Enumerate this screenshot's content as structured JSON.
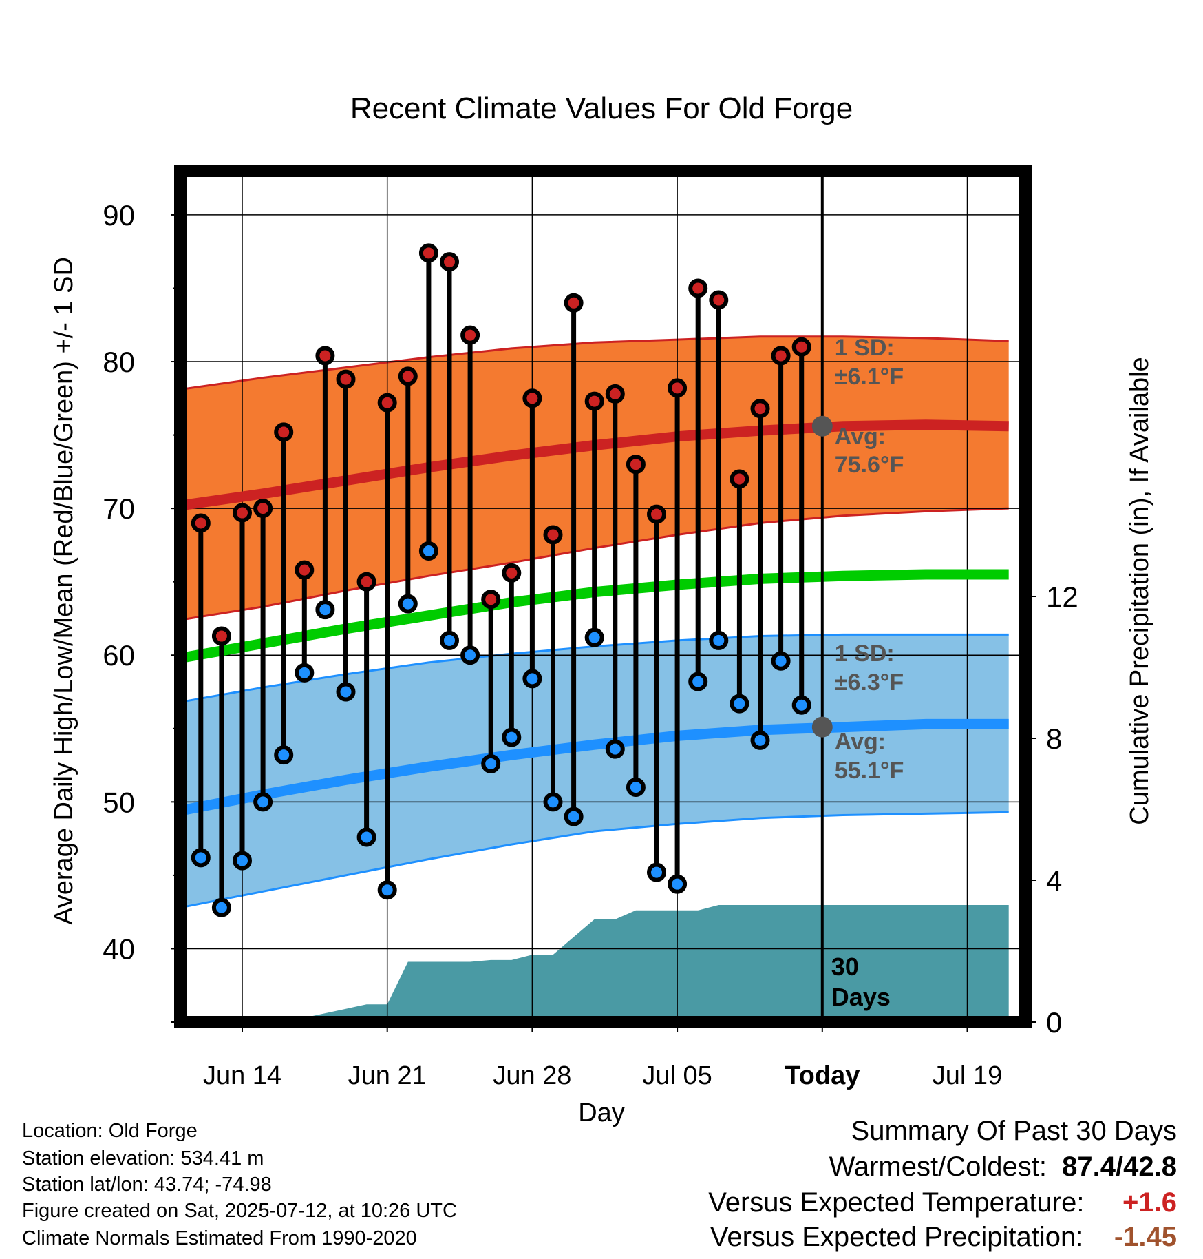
{
  "chart_data": {
    "type": "line",
    "title": "Recent Climate Values For Old Forge",
    "xlabel": "Day",
    "ylabel": "Average Daily High/Low/Mean (Red/Blue/Green) +/- 1 SD",
    "ylabel_right": "Cumulative Precipitation (in), If Available",
    "x_ticks": [
      "Jun 14",
      "Jun 21",
      "Jun 28",
      "Jul 05",
      "Today",
      "Jul 19"
    ],
    "y_ticks": [
      "40",
      "50",
      "60",
      "70",
      "80",
      "90"
    ],
    "y2_ticks": [
      "0",
      "4",
      "8",
      "12"
    ],
    "ylim": [
      35,
      93
    ],
    "y2lim": [
      0,
      24
    ],
    "dates": [
      "Jun 12",
      "Jun 13",
      "Jun 14",
      "Jun 15",
      "Jun 16",
      "Jun 17",
      "Jun 18",
      "Jun 19",
      "Jun 20",
      "Jun 21",
      "Jun 22",
      "Jun 23",
      "Jun 24",
      "Jun 25",
      "Jun 26",
      "Jun 27",
      "Jun 28",
      "Jun 29",
      "Jun 30",
      "Jul 01",
      "Jul 02",
      "Jul 03",
      "Jul 04",
      "Jul 05",
      "Jul 06",
      "Jul 07",
      "Jul 08",
      "Jul 09",
      "Jul 10",
      "Jul 11"
    ],
    "daily_high": [
      69.0,
      61.3,
      69.7,
      70.0,
      75.2,
      65.8,
      80.4,
      78.8,
      65.0,
      77.2,
      79.0,
      87.4,
      86.8,
      81.8,
      63.8,
      65.6,
      77.5,
      68.2,
      84.0,
      77.3,
      77.8,
      73.0,
      69.6,
      78.2,
      85.0,
      84.2,
      72.0,
      76.8,
      80.4,
      81.0
    ],
    "daily_low": [
      46.2,
      42.8,
      46.0,
      50.0,
      53.2,
      58.8,
      63.1,
      57.5,
      47.6,
      44.0,
      63.5,
      67.1,
      61.0,
      60.0,
      52.6,
      54.4,
      58.4,
      50.0,
      49.0,
      61.2,
      53.6,
      51.0,
      45.2,
      44.4,
      58.2,
      61.0,
      56.7,
      54.2,
      59.6,
      56.6
    ],
    "normals": {
      "start": "Jun 11",
      "end": "Jul 21",
      "avg_high": [
        70.2,
        71.0,
        71.9,
        72.8,
        73.6,
        74.3,
        74.9,
        75.3,
        75.6,
        75.7,
        75.6
      ],
      "avg_low": [
        49.4,
        50.5,
        51.5,
        52.4,
        53.2,
        53.9,
        54.5,
        54.9,
        55.1,
        55.3,
        55.3
      ],
      "avg_mean": [
        59.8,
        60.8,
        61.8,
        62.7,
        63.6,
        64.3,
        64.8,
        65.2,
        65.4,
        65.5,
        65.5
      ],
      "high_sd_upper": [
        78.1,
        78.9,
        79.6,
        80.3,
        80.9,
        81.3,
        81.5,
        81.7,
        81.7,
        81.6,
        81.4
      ],
      "high_sd_lower": [
        62.4,
        63.3,
        64.4,
        65.4,
        66.3,
        67.3,
        68.2,
        69.0,
        69.5,
        69.8,
        70.0
      ],
      "low_sd_upper": [
        56.8,
        57.8,
        58.7,
        59.5,
        60.1,
        60.6,
        61.0,
        61.3,
        61.4,
        61.4,
        61.4
      ],
      "low_sd_lower": [
        42.8,
        43.9,
        45.0,
        46.1,
        47.1,
        48.0,
        48.5,
        48.9,
        49.1,
        49.2,
        49.3
      ]
    },
    "precip": {
      "x": [
        "Jun 16",
        "Jun 20",
        "Jun 21",
        "Jun 22",
        "Jun 23",
        "Jun 24",
        "Jun 25",
        "Jun 26",
        "Jun 27",
        "Jun 28",
        "Jun 29",
        "Jun 30",
        "Jul 01",
        "Jul 02",
        "Jul 03",
        "Jul 04",
        "Jul 05",
        "Jul 06",
        "Jul 07",
        "Jul 08",
        "Jul 11",
        "Jul 21"
      ],
      "cumulative": [
        0,
        0.5,
        0.5,
        1.7,
        1.7,
        1.7,
        1.7,
        1.75,
        1.75,
        1.9,
        1.9,
        2.4,
        2.9,
        2.9,
        3.15,
        3.15,
        3.15,
        3.15,
        3.3,
        3.3,
        3.3,
        3.3
      ]
    },
    "annotations": {
      "high_sd_label": "1 SD:",
      "high_sd_value": "±6.1°F",
      "high_avg_label": "Avg:",
      "high_avg_value": "75.6°F",
      "low_sd_label": "1 SD:",
      "low_sd_value": "±6.3°F",
      "low_avg_label": "Avg:",
      "low_avg_value": "55.1°F",
      "days_line1": "30",
      "days_line2": "Days"
    },
    "colors": {
      "high": "#cc2222",
      "low": "#1e90ff",
      "mean": "#00cc00",
      "high_band": "#f47a30",
      "low_band": "#86c1e6",
      "precip": "#4a9aa4",
      "annotation": "#555555"
    }
  },
  "footer": {
    "location": "Location: Old Forge",
    "elevation": "Station elevation: 534.41 m",
    "latlon": "Station lat/lon: 43.74; -74.98",
    "created": "Figure created on Sat, 2025-07-12, at 10:26 UTC",
    "normals": "Climate Normals Estimated From 1990-2020"
  },
  "summary": {
    "title": "Summary Of Past 30 Days",
    "warm_cold_label": "Warmest/Coldest:",
    "warm_cold_value": "87.4/42.8",
    "temp_label": "Versus Expected Temperature:",
    "temp_value": "+1.6",
    "precip_label": "Versus Expected Precipitation:",
    "precip_value": "-1.45"
  }
}
